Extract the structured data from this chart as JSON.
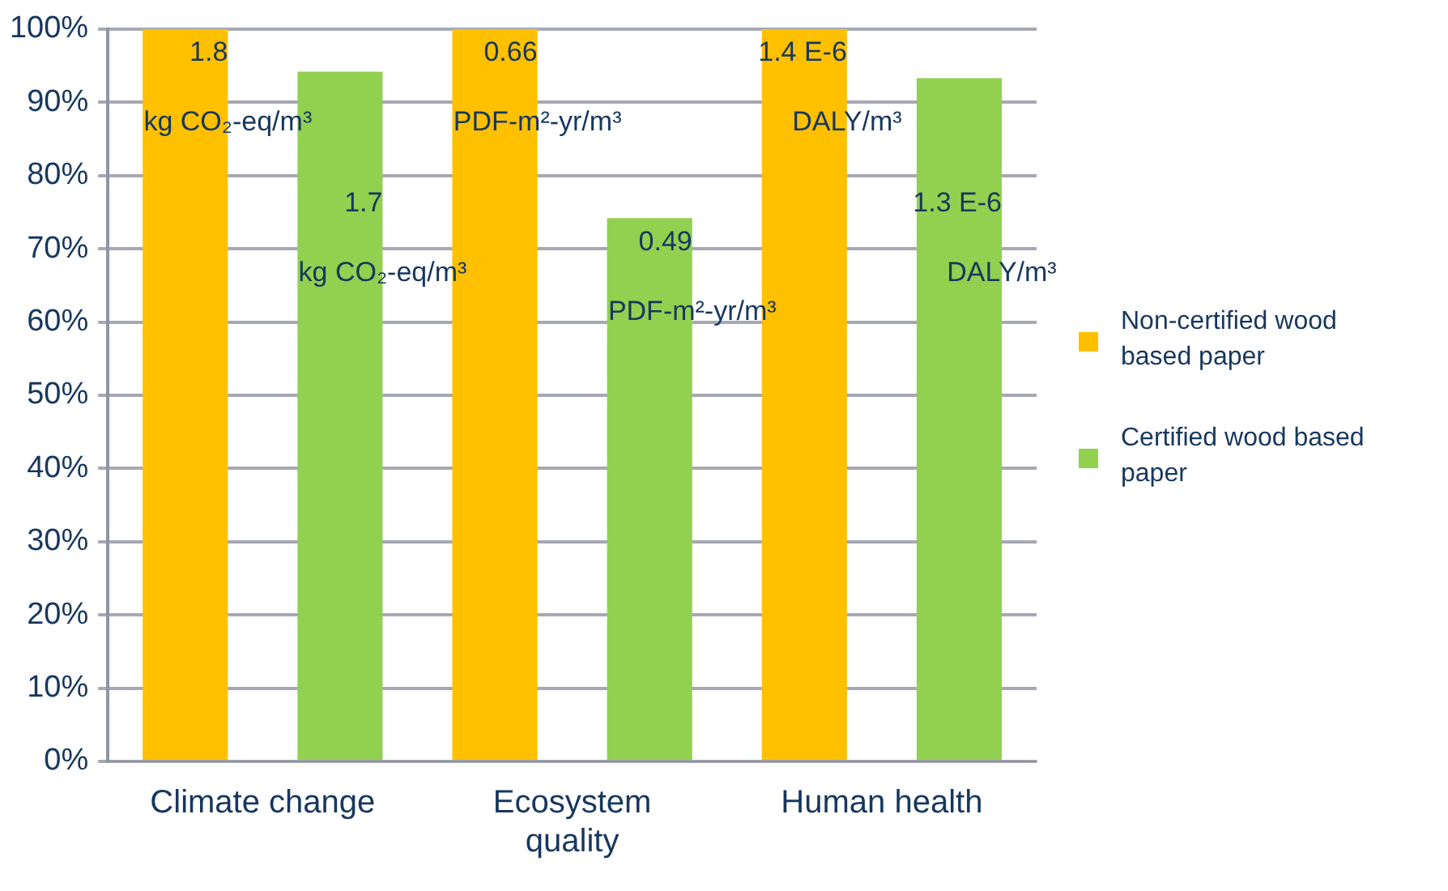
{
  "chart_data": {
    "type": "bar",
    "categories": [
      "Climate change",
      "Ecosystem quality",
      "Human health"
    ],
    "series": [
      {
        "name": "Non-certified wood based paper",
        "color": "#ffc000",
        "values": [
          100,
          100,
          100
        ]
      },
      {
        "name": "Certified wood based paper",
        "color": "#92d050",
        "values": [
          94.2,
          74.2,
          93.3
        ]
      }
    ],
    "annotations": [
      "1.8",
      "kg CO₂-eq/m³",
      "1.7",
      "kg CO₂-eq/m³",
      "0.66",
      "PDF-m²-yr/m³",
      "0.49",
      "PDF-m²-yr/m³",
      "1.4 E-6",
      "DALY/m³",
      "1.3 E-6",
      "DALY/m³"
    ],
    "ylim": [
      0,
      100
    ],
    "yticks": [
      {
        "value": 0,
        "label": "0%"
      },
      {
        "value": 10,
        "label": "10%"
      },
      {
        "value": 20,
        "label": "20%"
      },
      {
        "value": 30,
        "label": "30%"
      },
      {
        "value": 40,
        "label": "40%"
      },
      {
        "value": 50,
        "label": "50%"
      },
      {
        "value": 60,
        "label": "60%"
      },
      {
        "value": 70,
        "label": "70%"
      },
      {
        "value": 80,
        "label": "80%"
      },
      {
        "value": 90,
        "label": "90%"
      },
      {
        "value": 100,
        "label": "100%"
      }
    ],
    "grid": "y",
    "legend": "right"
  }
}
